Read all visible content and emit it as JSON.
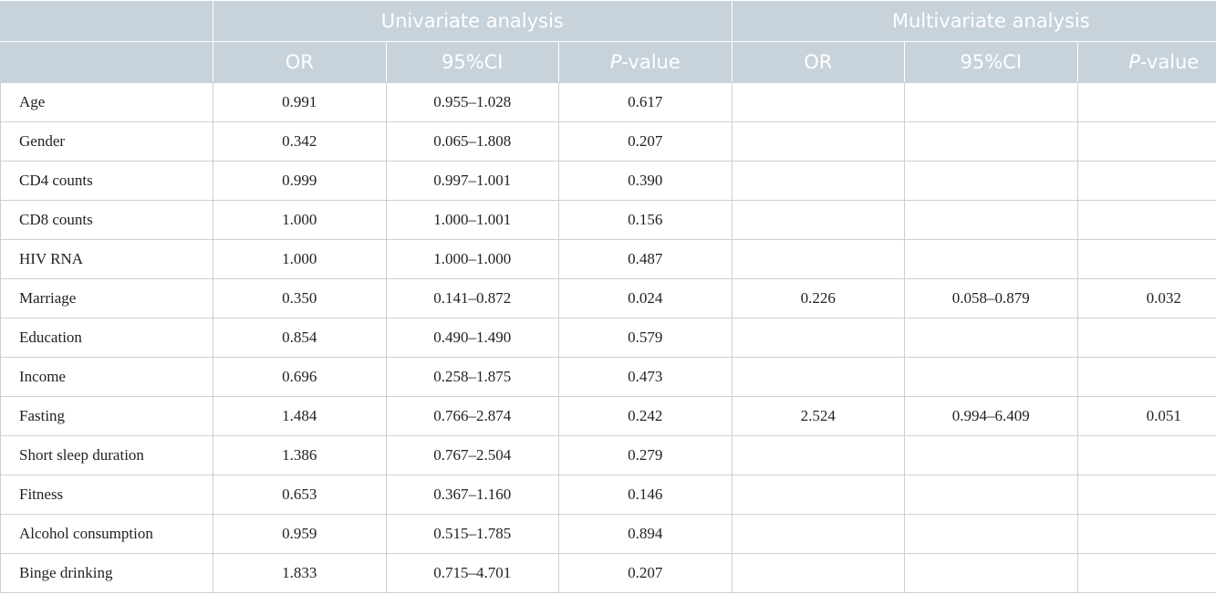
{
  "table": {
    "groups": [
      "Univariate analysis",
      "Multivariate analysis"
    ],
    "columns": [
      [
        "OR",
        "95%CI",
        {
          "italic": "P",
          "text": "-value"
        }
      ],
      [
        "OR",
        "95%CI",
        {
          "italic": "P",
          "text": "-value"
        }
      ]
    ],
    "rows": [
      [
        "Age",
        "0.991",
        "0.955–1.028",
        "0.617",
        null,
        null,
        null
      ],
      [
        "Gender",
        "0.342",
        "0.065–1.808",
        "0.207",
        null,
        null,
        null
      ],
      [
        "CD4 counts",
        "0.999",
        "0.997–1.001",
        "0.390",
        null,
        null,
        null
      ],
      [
        "CD8 counts",
        "1.000",
        "1.000–1.001",
        "0.156",
        null,
        null,
        null
      ],
      [
        "HIV RNA",
        "1.000",
        "1.000–1.000",
        "0.487",
        null,
        null,
        null
      ],
      [
        "Marriage",
        "0.350",
        "0.141–0.872",
        "0.024",
        "0.226",
        "0.058–0.879",
        "0.032"
      ],
      [
        "Education",
        "0.854",
        "0.490–1.490",
        "0.579",
        null,
        null,
        null
      ],
      [
        "Income",
        "0.696",
        "0.258–1.875",
        "0.473",
        null,
        null,
        null
      ],
      [
        "Fasting",
        "1.484",
        "0.766–2.874",
        "0.242",
        "2.524",
        "0.994–6.409",
        "0.051"
      ],
      [
        "Short sleep duration",
        "1.386",
        "0.767–2.504",
        "0.279",
        null,
        null,
        null
      ],
      [
        "Fitness",
        "0.653",
        "0.367–1.160",
        "0.146",
        null,
        null,
        null
      ],
      [
        "Alcohol consumption",
        "0.959",
        "0.515–1.785",
        "0.894",
        null,
        null,
        null
      ],
      [
        "Binge drinking",
        "1.833",
        "0.715–4.701",
        "0.207",
        null,
        null,
        null
      ]
    ]
  }
}
